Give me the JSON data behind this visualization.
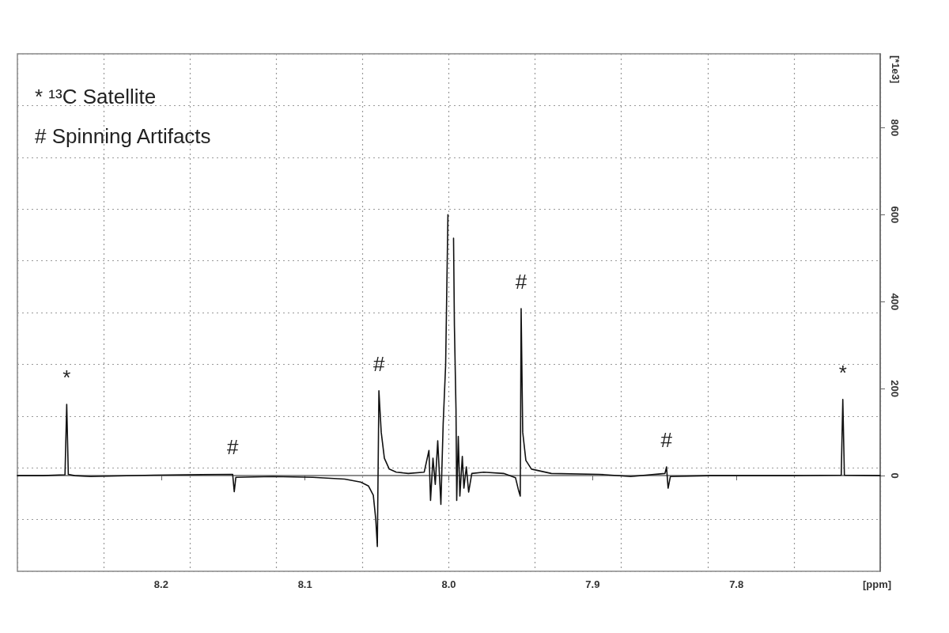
{
  "chart_data": {
    "type": "line",
    "xlabel": "[ppm]",
    "ylabel": "[*1e3]",
    "xlim": [
      8.3,
      7.7
    ],
    "xticks": [
      8.2,
      8.1,
      {
        "value": 8.0,
        "label": "8.0"
      },
      7.9,
      7.8
    ],
    "ylim": [
      -220,
      970
    ],
    "yticks": [
      0,
      200,
      400,
      600,
      800
    ],
    "grid": true,
    "marker": "none",
    "line_style": "solid",
    "series": [
      {
        "color": "#111111",
        "x": [
          8.3,
          8.2823,
          8.2669,
          8.2657,
          8.2646,
          8.2602,
          8.2492,
          8.205,
          8.1503,
          8.1492,
          8.1481,
          8.1221,
          8.0945,
          8.0724,
          8.0613,
          8.0558,
          8.0525,
          8.0508,
          8.0497,
          8.0486,
          8.047,
          8.0448,
          8.0414,
          8.0365,
          8.0282,
          8.0171,
          8.0138,
          8.0127,
          8.011,
          8.0094,
          8.0077,
          8.0055,
          8.0039,
          8.0022,
          8.0006,
          7.9994,
          7.9978,
          7.9967,
          7.9961,
          7.995,
          7.9945,
          7.9934,
          7.9923,
          7.9906,
          7.9895,
          7.9878,
          7.9862,
          7.984,
          7.9757,
          7.9619,
          7.9536,
          7.9514,
          7.9503,
          7.9497,
          7.9486,
          7.9464,
          7.9425,
          7.9287,
          7.8956,
          7.8735,
          7.8497,
          7.8486,
          7.8475,
          7.8459,
          7.8182,
          7.763,
          7.7271,
          7.726,
          7.7249,
          7.7
        ],
        "values": [
          0,
          0,
          2,
          164,
          3,
          0,
          -2,
          1,
          3,
          -37,
          -4,
          -2,
          -4,
          -8,
          -15,
          -24,
          -45,
          -100,
          -163,
          195,
          100,
          40,
          15,
          8,
          5,
          8,
          58,
          -57,
          40,
          -20,
          80,
          -66,
          120,
          254,
          600,
          null,
          null,
          546,
          345,
          153,
          -57,
          90,
          -47,
          44,
          -29,
          20,
          -38,
          5,
          8,
          5,
          -5,
          -35,
          -47,
          384,
          100,
          35,
          15,
          5,
          3,
          -2,
          5,
          20,
          -29,
          -2,
          0,
          0,
          1,
          175,
          1,
          0
        ]
      }
    ],
    "annotations": [
      "* ¹³C Satellite",
      "# Spinning Artifacts",
      {
        "text": "*",
        "x": 8.2657,
        "y": 164
      },
      {
        "text": "#",
        "x": 8.1503,
        "y": 3
      },
      {
        "text": "#",
        "x": 8.0486,
        "y": 195
      },
      {
        "text": "#",
        "x": 7.9497,
        "y": 384
      },
      {
        "text": "#",
        "x": 7.8486,
        "y": 20
      },
      {
        "text": "*",
        "x": 7.726,
        "y": 175
      }
    ]
  }
}
